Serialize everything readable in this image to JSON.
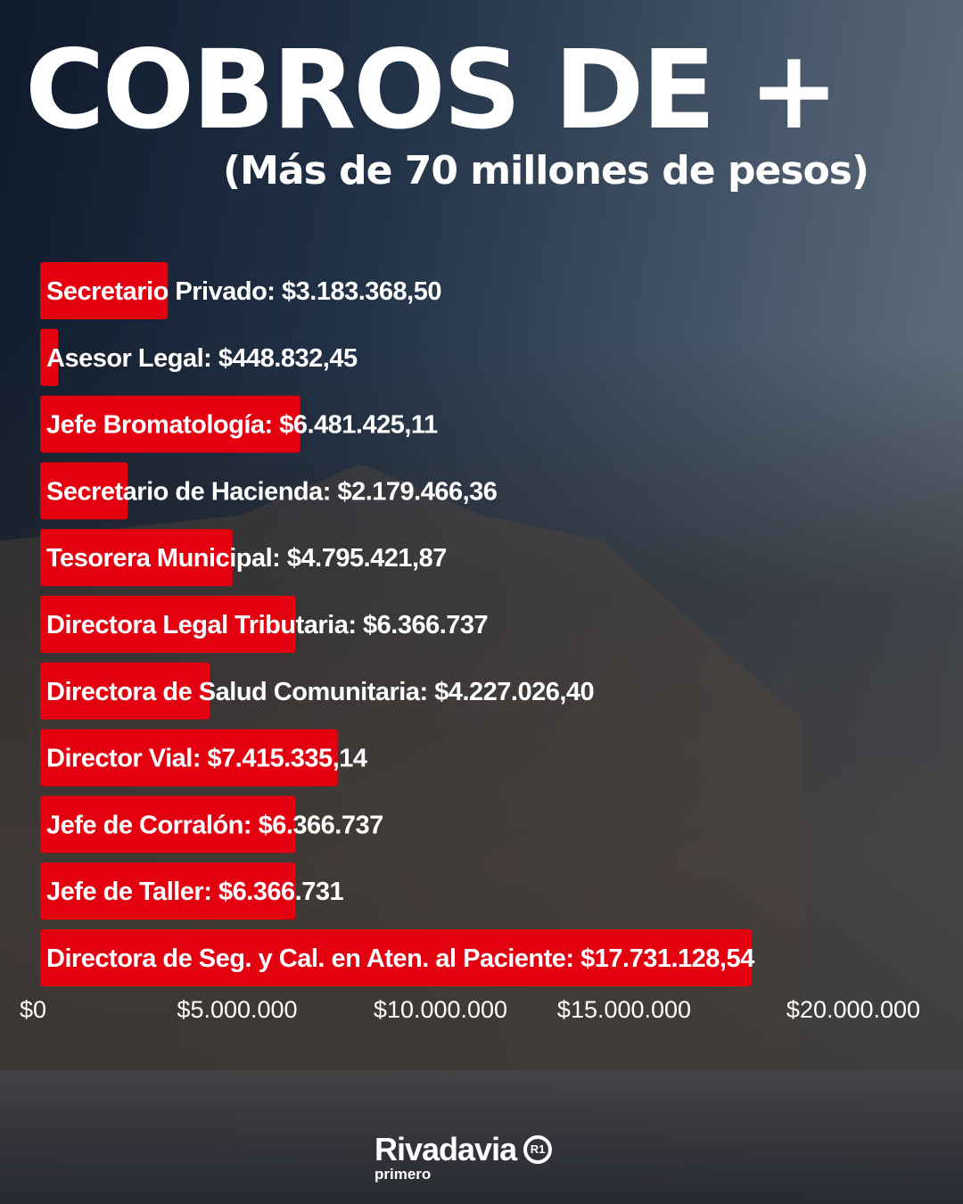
{
  "header": {
    "title": "COBROS DE +",
    "subtitle": "(Más de 70 millones de pesos)"
  },
  "colors": {
    "bar": "#e3000f",
    "text": "#ffffff",
    "background": "#1e2a3a"
  },
  "chart_data": {
    "type": "bar",
    "orientation": "horizontal",
    "categories": [
      "Secretario Privado",
      "Asesor Legal",
      "Jefe Bromatología",
      "Secretario de Hacienda",
      "Tesorera Municipal",
      "Directora Legal Tributaria",
      "Directora de Salud Comunitaria",
      "Director Vial",
      "Jefe de Corralón",
      "Jefe de Taller",
      "Directora de Seg. y Cal. en Aten. al Paciente"
    ],
    "values": [
      3183368.5,
      448832.45,
      6481425.11,
      2179466.36,
      4795421.87,
      6366737,
      4227026.4,
      7415335.14,
      6366737,
      6366731,
      17731128.54
    ],
    "data_labels": [
      "$3.183.368,50",
      "$448.832,45",
      "$6.481.425,11",
      "$2.179.466,36",
      "$4.795.421,87",
      "$6.366.737",
      "$4.227.026,40",
      "$7.415.335,14",
      "$6.366.737",
      "$6.366.731",
      "$17.731.128,54"
    ],
    "xlim": [
      0,
      20000000
    ],
    "xticks": [
      0,
      5000000,
      10000000,
      15000000,
      20000000
    ],
    "xtick_labels": [
      "$0",
      "$5.000.000",
      "$10.000.000",
      "$15.000.000",
      "$20.000.000"
    ],
    "grid": false,
    "bar_color": "#e3000f"
  },
  "logo": {
    "name": "Rivadavia",
    "sub": "primero",
    "mark": "R1"
  }
}
